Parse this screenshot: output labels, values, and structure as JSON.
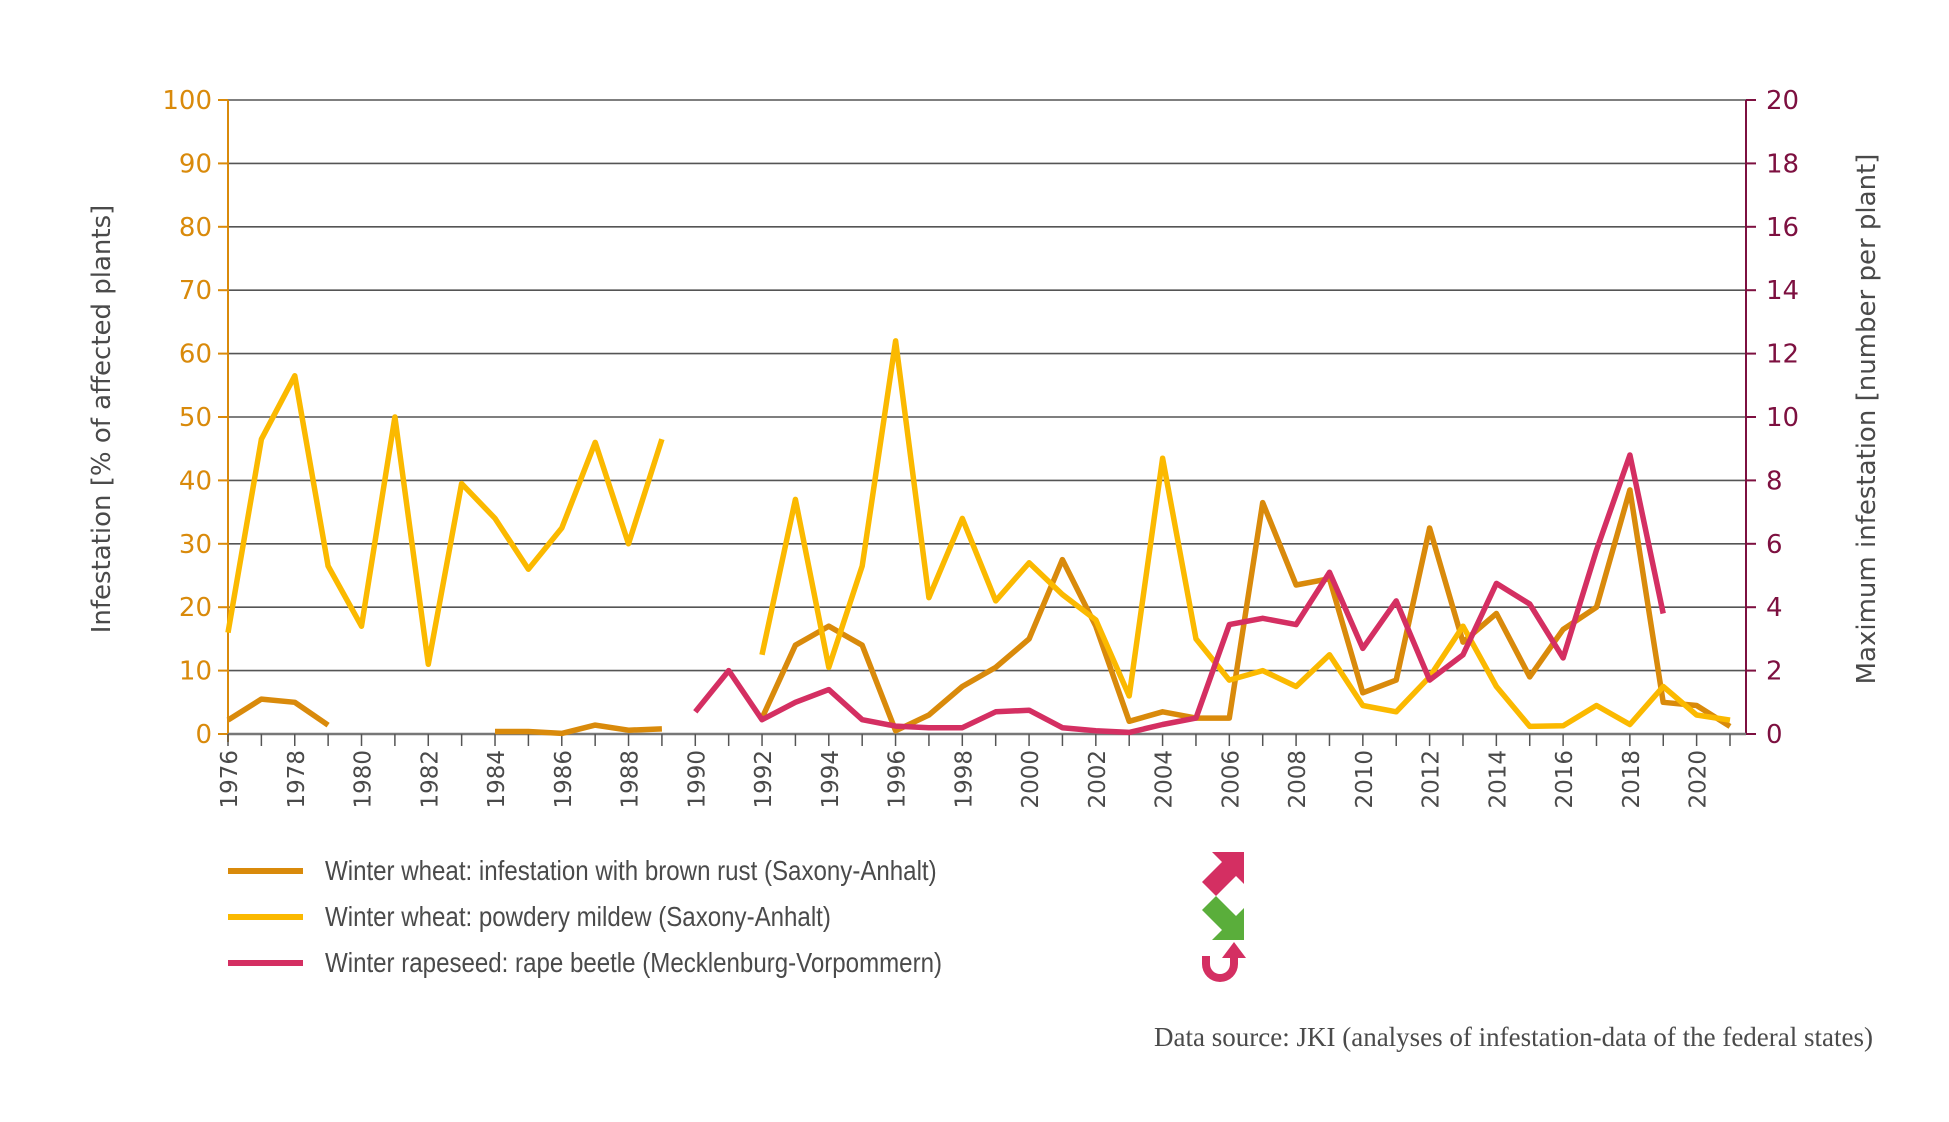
{
  "chart_data": {
    "type": "line",
    "title": "",
    "x": [
      1976,
      1977,
      1978,
      1979,
      1980,
      1981,
      1982,
      1983,
      1984,
      1985,
      1986,
      1987,
      1988,
      1989,
      1990,
      1991,
      1992,
      1993,
      1994,
      1995,
      1996,
      1997,
      1998,
      1999,
      2000,
      2001,
      2002,
      2003,
      2004,
      2005,
      2006,
      2007,
      2008,
      2009,
      2010,
      2011,
      2012,
      2013,
      2014,
      2015,
      2016,
      2017,
      2018,
      2019,
      2020,
      2021
    ],
    "xtick_labels": [
      "1976",
      "1978",
      "1980",
      "1982",
      "1984",
      "1986",
      "1988",
      "1990",
      "1992",
      "1994",
      "1996",
      "1998",
      "2000",
      "2002",
      "2004",
      "2006",
      "2008",
      "2010",
      "2012",
      "2014",
      "2016",
      "2018",
      "2020"
    ],
    "ylabel_left": "Infestation [% of affected plants]",
    "ylabel_right": "Maximum infestation [number per plant]",
    "ylim_left": [
      0,
      100
    ],
    "ylim_right": [
      0,
      20
    ],
    "yticks_left": [
      "0",
      "10",
      "20",
      "30",
      "40",
      "50",
      "60",
      "70",
      "80",
      "90",
      "100"
    ],
    "yticks_right": [
      "0",
      "2",
      "4",
      "6",
      "8",
      "10",
      "12",
      "14",
      "16",
      "18",
      "20"
    ],
    "grid": true,
    "legend_position": "bottom-left",
    "series": [
      {
        "name": "Winter wheat: infestation with brown rust (Saxony-Anhalt)",
        "axis": "left",
        "color": "#d98a0b",
        "trend_icon": "arrow-up-right-icon",
        "values": [
          2.2,
          5.5,
          5.0,
          1.4,
          null,
          null,
          null,
          null,
          0.4,
          0.4,
          0.1,
          1.4,
          0.6,
          0.8,
          null,
          null,
          2.5,
          14,
          17,
          14,
          0.5,
          3,
          7.5,
          10.5,
          15,
          27.5,
          17,
          2,
          3.5,
          2.5,
          2.5,
          36.5,
          23.5,
          24.5,
          6.5,
          8.5,
          32.5,
          14.5,
          19,
          9,
          16.5,
          20,
          38.5,
          5,
          4.5,
          1.2
        ]
      },
      {
        "name": "Winter wheat: powdery mildew (Saxony-Anhalt)",
        "axis": "left",
        "color": "#fbb900",
        "trend_icon": "arrow-down-right-icon",
        "values": [
          16,
          46.5,
          56.5,
          26.5,
          17,
          50,
          11,
          39.5,
          34,
          26,
          32.5,
          46,
          30,
          46.5,
          null,
          null,
          12.5,
          37,
          10.5,
          26.5,
          62,
          21.5,
          34,
          21,
          27,
          22,
          18,
          6,
          43.5,
          15,
          8.5,
          10,
          7.5,
          12.5,
          4.5,
          3.5,
          9,
          17,
          7.5,
          1.2,
          1.3,
          4.5,
          1.5,
          7.5,
          3,
          2.2
        ]
      },
      {
        "name": "Winter rapeseed: rape beetle (Mecklenburg-Vorpommern)",
        "axis": "right",
        "color": "#d42f62",
        "trend_icon": "u-turn-arrow-icon",
        "values": [
          null,
          null,
          null,
          null,
          null,
          null,
          null,
          null,
          null,
          null,
          null,
          null,
          null,
          null,
          0.7,
          2,
          0.45,
          1,
          1.4,
          0.45,
          0.25,
          0.2,
          0.2,
          0.7,
          0.75,
          0.2,
          0.1,
          0.05,
          0.3,
          0.5,
          3.45,
          3.65,
          3.45,
          5.1,
          2.7,
          4.2,
          1.7,
          2.5,
          4.75,
          4.1,
          2.4,
          5.8,
          8.8,
          3.8,
          null,
          null
        ]
      }
    ]
  },
  "legend": {
    "items": [
      {
        "label": "Winter wheat: infestation with brown rust (Saxony-Anhalt)",
        "color": "#d98a0b"
      },
      {
        "label": "Winter wheat: powdery mildew (Saxony-Anhalt)",
        "color": "#fbb900"
      },
      {
        "label": "Winter rapeseed: rape beetle (Mecklenburg-Vorpommern)",
        "color": "#d42f62"
      }
    ],
    "trend_icons": [
      {
        "icon": "arrow-up-right-icon",
        "color": "#d42f62"
      },
      {
        "icon": "arrow-down-right-icon",
        "color": "#5aae3b"
      },
      {
        "icon": "u-turn-arrow-icon",
        "color": "#d42f62"
      }
    ]
  },
  "footer": {
    "source": "Data source: JKI (analyses of infestation-data of the federal states)"
  },
  "colors": {
    "left_axis": "#d98a0b",
    "right_axis": "#7d1040"
  }
}
